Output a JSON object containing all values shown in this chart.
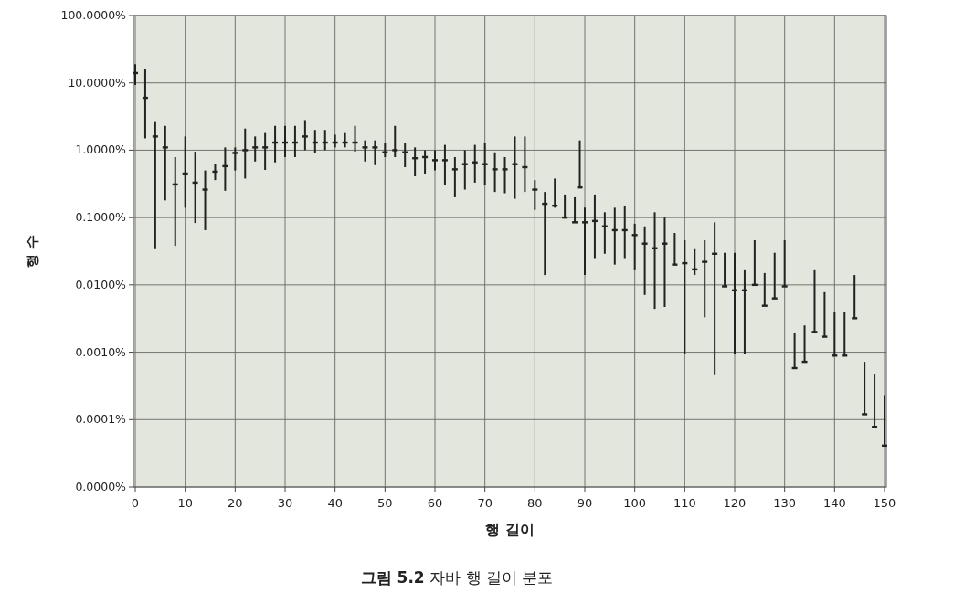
{
  "chart_data": {
    "type": "scatter",
    "title": "**그림 5.2** 자바 행 길이 분포",
    "xlabel": "행 길이",
    "ylabel": "행 수",
    "log": "y",
    "grid": true,
    "color": "#222222",
    "xlim": [
      0,
      150
    ],
    "xticks": [
      0,
      10,
      20,
      30,
      40,
      50,
      60,
      70,
      80,
      90,
      100,
      110,
      120,
      130,
      140,
      150
    ],
    "ylim": [
      1e-05,
      100
    ],
    "yticks": [
      {
        "value": 1e-05,
        "label": "0.0000%"
      },
      {
        "value": 0.0001,
        "label": "0.0001%"
      },
      {
        "value": 0.001,
        "label": "0.0010%"
      },
      {
        "value": 0.01,
        "label": "0.0100%"
      },
      {
        "value": 0.1,
        "label": "0.1000%"
      },
      {
        "value": 1,
        "label": "1.0000%"
      },
      {
        "value": 10,
        "label": "10.0000%"
      },
      {
        "value": 100,
        "label": "100.0000%"
      }
    ],
    "x": [
      0,
      2,
      4,
      6,
      8,
      10,
      12,
      14,
      16,
      18,
      20,
      22,
      24,
      26,
      28,
      30,
      32,
      34,
      36,
      38,
      40,
      42,
      44,
      46,
      48,
      50,
      52,
      54,
      56,
      58,
      60,
      62,
      64,
      66,
      68,
      70,
      72,
      74,
      76,
      78,
      80,
      82,
      84,
      86,
      88,
      89,
      90,
      92,
      94,
      96,
      98,
      100,
      102,
      104,
      106,
      108,
      110,
      112,
      114,
      116,
      118,
      120,
      122,
      124,
      126,
      128,
      130,
      132,
      134,
      136,
      138,
      140,
      142,
      144,
      146,
      148,
      150
    ],
    "values": [
      14,
      6.0,
      1.6,
      1.1,
      0.31,
      0.45,
      0.33,
      0.26,
      0.48,
      0.58,
      0.91,
      1.0,
      1.1,
      1.1,
      1.3,
      1.3,
      1.3,
      1.6,
      1.3,
      1.3,
      1.3,
      1.3,
      1.3,
      1.1,
      1.1,
      0.93,
      1.0,
      0.93,
      0.76,
      0.79,
      0.71,
      0.71,
      0.52,
      0.62,
      0.66,
      0.62,
      0.52,
      0.52,
      0.62,
      0.56,
      0.26,
      0.16,
      0.15,
      0.1,
      0.085,
      0.28,
      0.085,
      0.089,
      0.074,
      0.065,
      0.065,
      0.055,
      0.041,
      0.035,
      0.041,
      0.02,
      0.021,
      0.017,
      0.022,
      0.029,
      0.0095,
      0.0083,
      0.0083,
      0.01,
      0.0049,
      0.0063,
      0.0095,
      0.00058,
      0.00072,
      0.002,
      0.0017,
      0.00089,
      0.00089,
      0.0032,
      0.00012,
      7.8e-05,
      4.1e-05
    ],
    "errors": [
      [
        9.3,
        19
      ],
      [
        1.5,
        16
      ],
      [
        0.035,
        2.7
      ],
      [
        0.18,
        2.3
      ],
      [
        0.038,
        0.79
      ],
      [
        0.14,
        1.6
      ],
      [
        0.083,
        0.95
      ],
      [
        0.065,
        0.5
      ],
      [
        0.36,
        0.62
      ],
      [
        0.25,
        1.1
      ],
      [
        0.5,
        1.1
      ],
      [
        0.38,
        2.1
      ],
      [
        0.68,
        1.6
      ],
      [
        0.51,
        1.8
      ],
      [
        0.66,
        2.3
      ],
      [
        0.79,
        2.3
      ],
      [
        0.79,
        2.3
      ],
      [
        1.0,
        2.8
      ],
      [
        0.91,
        2.0
      ],
      [
        1.0,
        2.0
      ],
      [
        1.1,
        1.7
      ],
      [
        1.1,
        1.8
      ],
      [
        0.95,
        2.3
      ],
      [
        0.68,
        1.4
      ],
      [
        0.6,
        1.4
      ],
      [
        0.79,
        1.3
      ],
      [
        0.79,
        2.3
      ],
      [
        0.56,
        1.3
      ],
      [
        0.41,
        1.1
      ],
      [
        0.45,
        1.0
      ],
      [
        0.5,
        1.0
      ],
      [
        0.3,
        1.2
      ],
      [
        0.2,
        0.79
      ],
      [
        0.26,
        1.0
      ],
      [
        0.33,
        1.2
      ],
      [
        0.3,
        1.3
      ],
      [
        0.24,
        0.93
      ],
      [
        0.23,
        0.79
      ],
      [
        0.19,
        1.6
      ],
      [
        0.24,
        1.6
      ],
      [
        0.13,
        0.36
      ],
      [
        0.014,
        0.24
      ],
      [
        0.14,
        0.38
      ],
      [
        0.1,
        0.22
      ],
      [
        0.085,
        0.2
      ],
      [
        0.28,
        1.4
      ],
      [
        0.014,
        0.14
      ],
      [
        0.025,
        0.22
      ],
      [
        0.029,
        0.12
      ],
      [
        0.02,
        0.14
      ],
      [
        0.025,
        0.15
      ],
      [
        0.017,
        0.081
      ],
      [
        0.0071,
        0.074
      ],
      [
        0.0044,
        0.12
      ],
      [
        0.0047,
        0.1
      ],
      [
        0.02,
        0.059
      ],
      [
        0.00095,
        0.046
      ],
      [
        0.014,
        0.035
      ],
      [
        0.0033,
        0.046
      ],
      [
        0.00047,
        0.085
      ],
      [
        0.0095,
        0.03
      ],
      [
        0.00095,
        0.03
      ],
      [
        0.00095,
        0.017
      ],
      [
        0.01,
        0.046
      ],
      [
        0.0049,
        0.015
      ],
      [
        0.0063,
        0.03
      ],
      [
        0.0095,
        0.046
      ],
      [
        0.00058,
        0.0019
      ],
      [
        0.00072,
        0.0025
      ],
      [
        0.002,
        0.017
      ],
      [
        0.0017,
        0.0078
      ],
      [
        0.00089,
        0.0039
      ],
      [
        0.00089,
        0.0039
      ],
      [
        0.0032,
        0.014
      ],
      [
        0.00012,
        0.00072
      ],
      [
        7.8e-05,
        0.00048
      ],
      [
        4.1e-05,
        0.00023
      ]
    ]
  }
}
